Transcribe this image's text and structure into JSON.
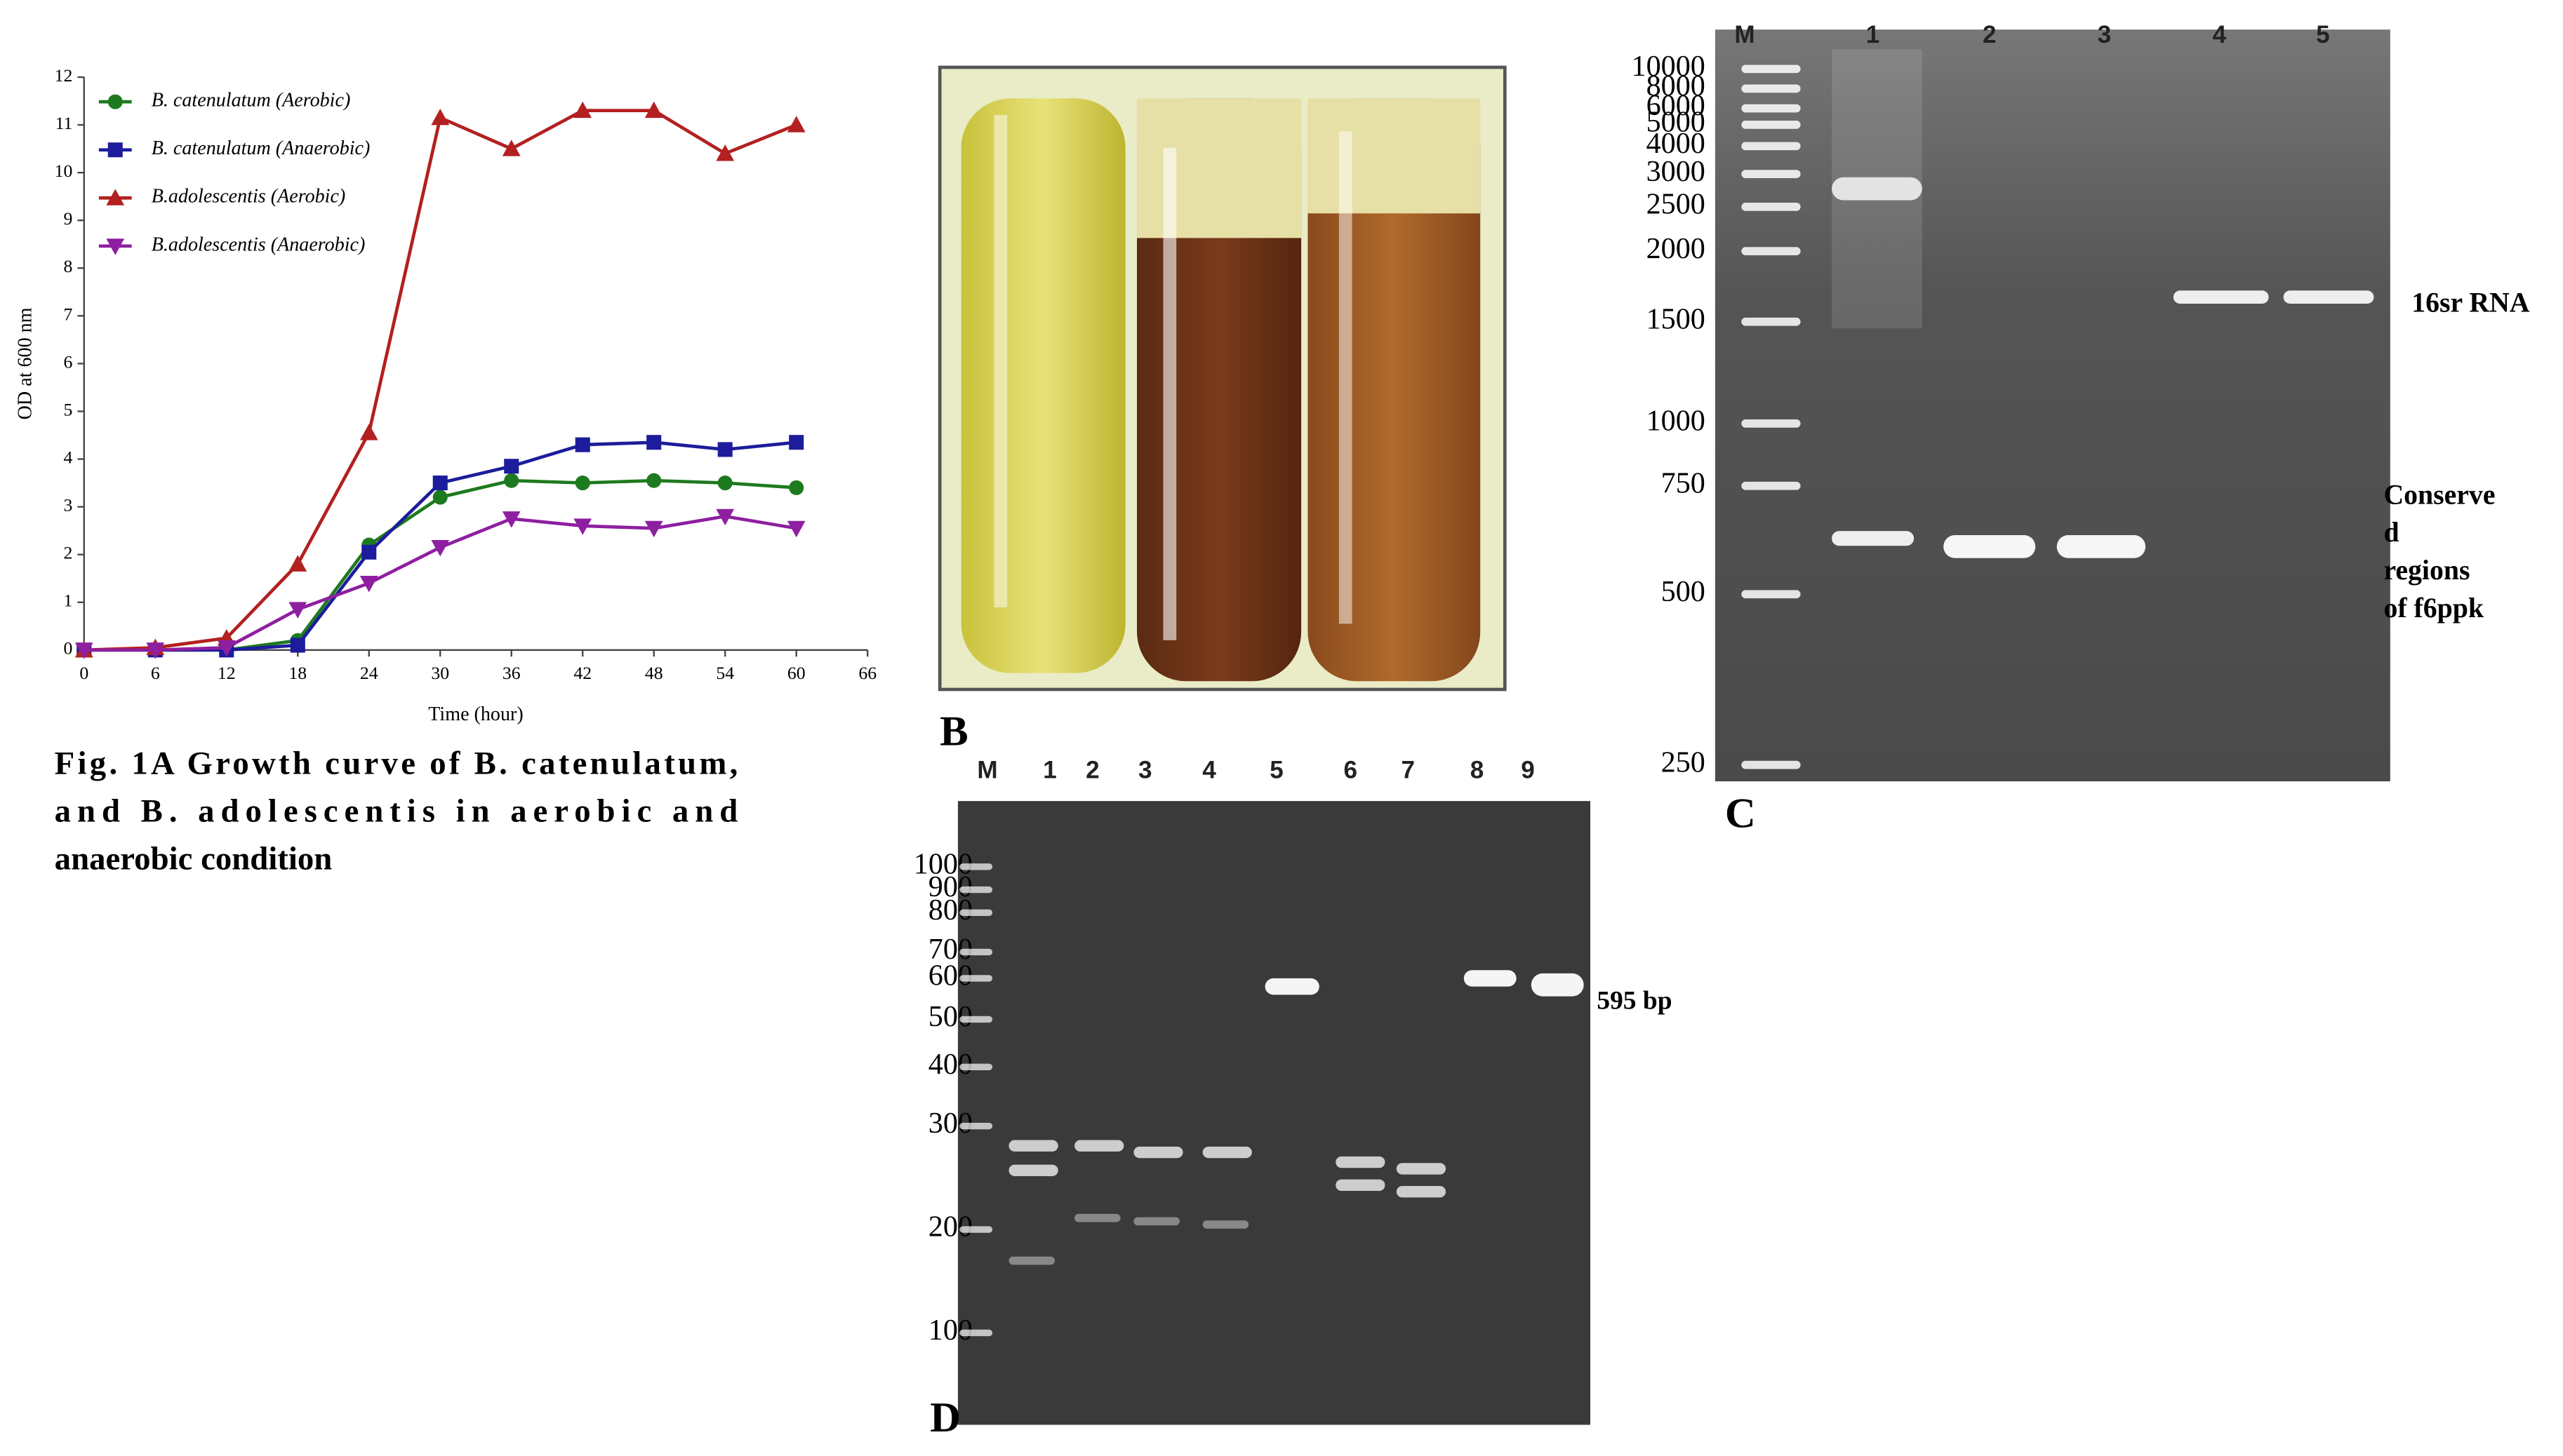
{
  "chart_data": {
    "type": "line",
    "xlabel": "Time (hour)",
    "ylabel": "OD at 600 nm",
    "x": [
      0,
      6,
      12,
      18,
      24,
      30,
      36,
      42,
      48,
      54,
      60
    ],
    "xlim": [
      0,
      66
    ],
    "xticks": [
      0,
      6,
      12,
      18,
      24,
      30,
      36,
      42,
      48,
      54,
      60,
      66
    ],
    "ylim": [
      0,
      12
    ],
    "yticks": [
      0,
      1,
      2,
      3,
      4,
      5,
      6,
      7,
      8,
      9,
      10,
      11,
      12
    ],
    "legend": "upper left",
    "series": [
      {
        "name": "B. catenulatum (Aerobic)",
        "color": "#1e7a1e",
        "marker": "circle",
        "values": [
          0,
          0,
          0,
          0.2,
          2.2,
          3.2,
          3.55,
          3.5,
          3.55,
          3.5,
          3.4
        ]
      },
      {
        "name": "B. catenulatum (Anaerobic)",
        "color": "#1c1c9c",
        "marker": "square",
        "values": [
          0,
          0,
          0,
          0.1,
          2.05,
          3.5,
          3.85,
          4.3,
          4.35,
          4.2,
          4.35
        ]
      },
      {
        "name": "B.adolescentis (Aerobic)",
        "color": "#b32020",
        "marker": "triangle-up",
        "values": [
          0,
          0.05,
          0.25,
          1.8,
          4.55,
          11.15,
          10.5,
          11.3,
          11.3,
          10.4,
          11.0
        ]
      },
      {
        "name": "B.adolescentis (Anaerobic)",
        "color": "#8e1fa0",
        "marker": "triangle-down",
        "values": [
          0,
          0,
          0.05,
          0.85,
          1.4,
          2.15,
          2.75,
          2.6,
          2.55,
          2.8,
          2.55
        ]
      }
    ]
  },
  "caption": [
    "Fig. 1A Growth curve of B. catenulatum,",
    "and B. adolescentis in aerobic and",
    "anaerobic condition"
  ],
  "panel_b": {
    "label": "B"
  },
  "gel_c": {
    "label": "C",
    "lanes": [
      "M",
      "1",
      "2",
      "3",
      "4",
      "5"
    ],
    "markers": [
      10000,
      8000,
      6000,
      5000,
      4000,
      3000,
      2500,
      2000,
      1500,
      1000,
      750,
      500,
      250
    ],
    "annotations": [
      "16sr RNA",
      "Conserve",
      "d",
      "regions",
      "of f6ppk"
    ]
  },
  "gel_d": {
    "label": "D",
    "lanes": [
      "M",
      "1",
      "2",
      "3",
      "4",
      "5",
      "6",
      "7",
      "8",
      "9"
    ],
    "markers": [
      1000,
      900,
      800,
      700,
      600,
      500,
      400,
      300,
      200,
      100
    ],
    "annotation": "595 bp"
  }
}
